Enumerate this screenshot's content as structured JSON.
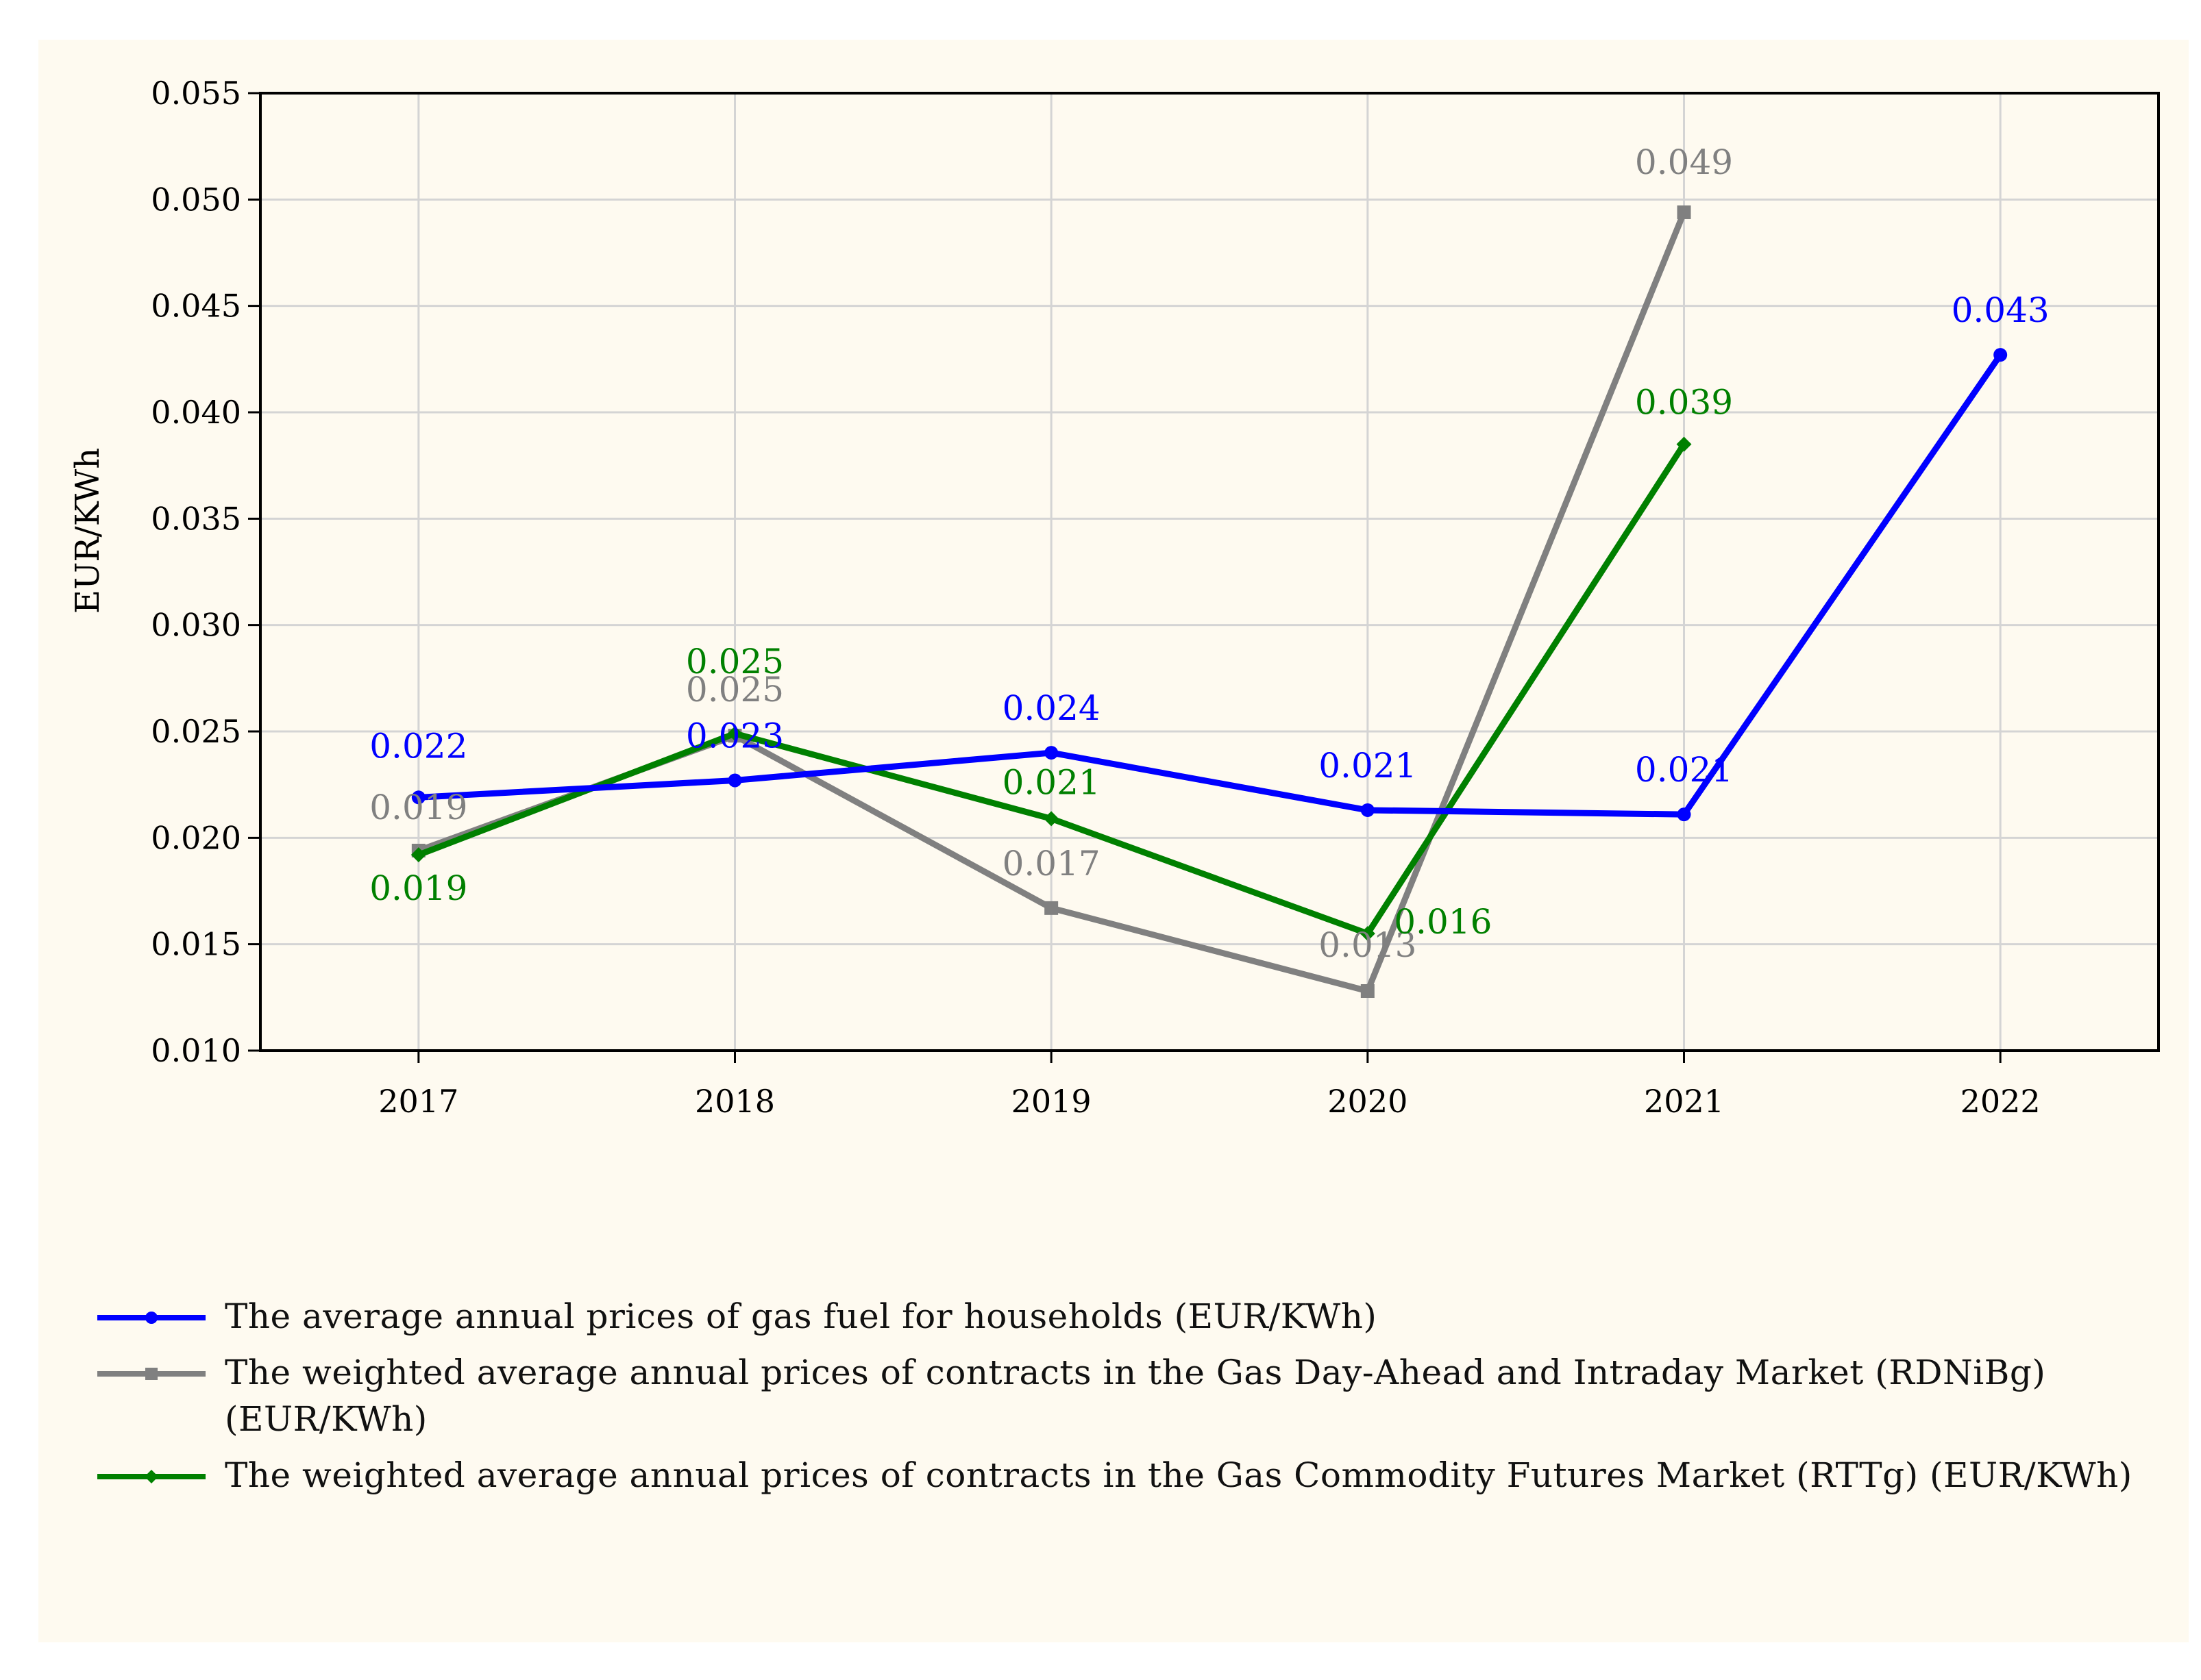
{
  "chart_data": {
    "type": "line",
    "title": "",
    "xlabel": "",
    "ylabel": "EUR/KWh",
    "categories": [
      "2017",
      "2018",
      "2019",
      "2020",
      "2021",
      "2022"
    ],
    "ylim": [
      0.01,
      0.055
    ],
    "yticks": [
      "0.010",
      "0.015",
      "0.020",
      "0.025",
      "0.030",
      "0.035",
      "0.040",
      "0.045",
      "0.050",
      "0.055"
    ],
    "ytick_values": [
      0.01,
      0.015,
      0.02,
      0.025,
      0.03,
      0.035,
      0.04,
      0.045,
      0.05,
      0.055
    ],
    "grid": true,
    "legend_position": "bottom",
    "series": [
      {
        "name": "The average annual prices of gas fuel for households (EUR/KWh)",
        "color": "#0000ff",
        "marker": "circle",
        "values": [
          0.0219,
          0.0227,
          0.024,
          0.0213,
          0.0211,
          0.0427
        ],
        "labels": [
          "0.022",
          "0.023",
          "0.024",
          "0.021",
          "0.021",
          "0.043"
        ]
      },
      {
        "name": "The weighted average annual prices of contracts in the Gas Day-Ahead and Intraday Market (RDNiBg) (EUR/KWh)",
        "color": "#808080",
        "marker": "square",
        "values": [
          0.0194,
          0.0248,
          0.0167,
          0.0128,
          0.0494,
          null
        ],
        "labels": [
          "0.019",
          "0.025",
          "0.017",
          "0.013",
          "0.049",
          ""
        ]
      },
      {
        "name": "The weighted average annual prices of contracts in the Gas Commodity Futures Market (RTTg) (EUR/KWh)",
        "color": "#008000",
        "marker": "diamond",
        "values": [
          0.0192,
          0.0249,
          0.0209,
          0.0155,
          0.0385,
          null
        ],
        "labels": [
          "0.019",
          "0.025",
          "0.021",
          "0.016",
          "0.039",
          ""
        ]
      }
    ]
  }
}
